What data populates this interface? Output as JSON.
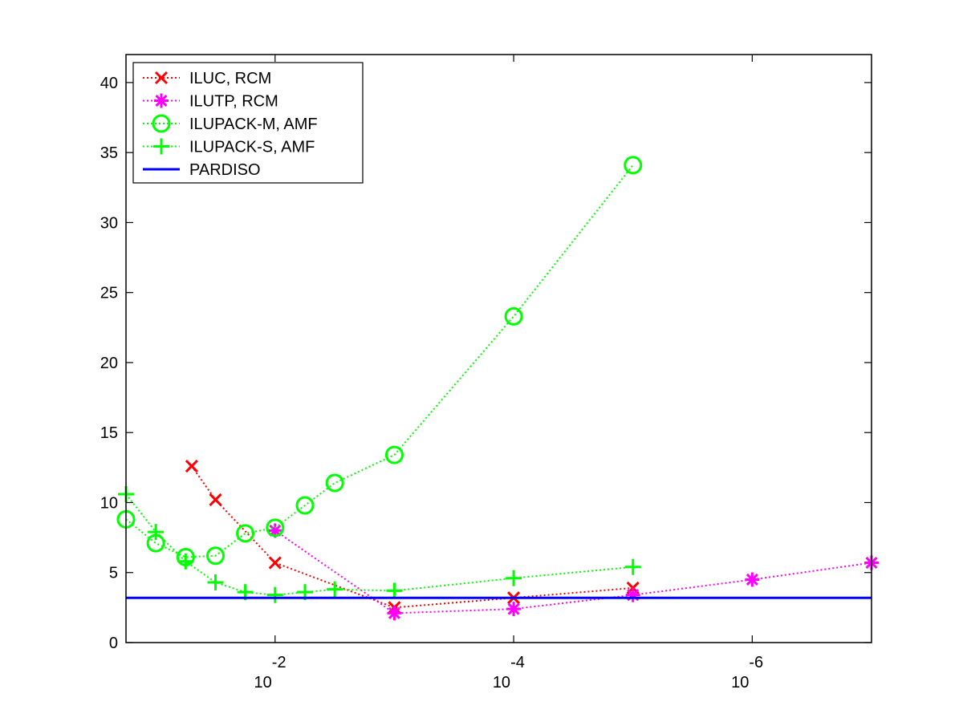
{
  "chart_data": {
    "type": "line",
    "title": "",
    "xlabel": "",
    "ylabel": "",
    "x_scale": "log-reversed",
    "xlim": [
      0.1778,
      1e-07
    ],
    "ylim": [
      0,
      42
    ],
    "x_ticks": [
      {
        "value": 0.01,
        "base": "10",
        "exponent": "-2"
      },
      {
        "value": 0.0001,
        "base": "10",
        "exponent": "-4"
      },
      {
        "value": 1e-06,
        "base": "10",
        "exponent": "-6"
      }
    ],
    "y_ticks": [
      {
        "value": 0,
        "label": "0"
      },
      {
        "value": 5,
        "label": "5"
      },
      {
        "value": 10,
        "label": "10"
      },
      {
        "value": 15,
        "label": "15"
      },
      {
        "value": 20,
        "label": "20"
      },
      {
        "value": 25,
        "label": "25"
      },
      {
        "value": 30,
        "label": "30"
      },
      {
        "value": 35,
        "label": "35"
      },
      {
        "value": 40,
        "label": "40"
      }
    ],
    "legend_position": "top-left",
    "grid": false,
    "series": [
      {
        "name": "ILUC, RCM",
        "color": "#ff0000",
        "marker": "x",
        "line": "dotted",
        "x": [
          0.05,
          0.0316,
          0.01,
          0.001,
          0.0001,
          1e-05
        ],
        "y": [
          12.6,
          10.2,
          5.7,
          2.5,
          3.2,
          3.9
        ]
      },
      {
        "name": "ILUTP, RCM",
        "color": "#ff00ff",
        "marker": "asterisk",
        "line": "dotted",
        "x": [
          0.01,
          0.001,
          0.0001,
          1e-05,
          1e-06,
          1e-07
        ],
        "y": [
          8.0,
          2.1,
          2.4,
          3.4,
          4.5,
          5.7
        ]
      },
      {
        "name": "ILUPACK-M, AMF",
        "color": "#00ff00",
        "marker": "circle",
        "line": "dotted",
        "x": [
          0.1778,
          0.1,
          0.0562,
          0.0316,
          0.0178,
          0.01,
          0.00562,
          0.00316,
          0.001,
          0.0001,
          1e-05
        ],
        "y": [
          8.8,
          7.1,
          6.1,
          6.2,
          7.8,
          8.2,
          9.8,
          11.4,
          13.4,
          23.3,
          34.1
        ]
      },
      {
        "name": "ILUPACK-S, AMF",
        "color": "#00ff00",
        "marker": "plus",
        "line": "dotted",
        "x": [
          0.1778,
          0.1,
          0.0562,
          0.0316,
          0.0178,
          0.01,
          0.00562,
          0.00316,
          0.001,
          0.0001,
          1e-05
        ],
        "y": [
          10.6,
          7.9,
          5.8,
          4.3,
          3.6,
          3.4,
          3.6,
          3.8,
          3.7,
          4.6,
          5.4
        ]
      },
      {
        "name": "PARDISO",
        "color": "#0000ff",
        "marker": "none",
        "line": "solid",
        "x": [
          0.1778,
          1e-07
        ],
        "y": [
          3.2,
          3.2
        ]
      }
    ]
  }
}
